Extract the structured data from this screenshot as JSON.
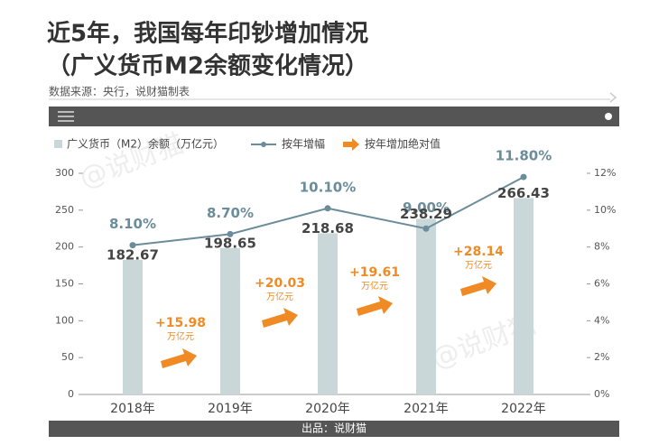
{
  "chart_data": {
    "type": "bar_line",
    "title": "近5年，我国每年印钞增加情况",
    "subtitle": "（广义货币M2余额变化情况）",
    "source": "数据来源：央行，说财猫制表",
    "footer": "出品：说财猫",
    "watermark": "@说财猫",
    "categories": [
      "2018年",
      "2019年",
      "2020年",
      "2021年",
      "2022年"
    ],
    "series": [
      {
        "name": "广义货币（M2）余额（万亿元）",
        "color": "#c9d7d9",
        "values": [
          182.67,
          198.65,
          218.68,
          238.29,
          266.43
        ]
      },
      {
        "name": "按年增幅",
        "color": "#6b8c9b",
        "axis": "y2",
        "values": [
          8.1,
          8.7,
          10.1,
          9.0,
          11.8
        ],
        "value_labels": [
          "8.10%",
          "8.70%",
          "10.10%",
          "9.00%",
          "11.80%"
        ]
      }
    ],
    "increments": {
      "name": "按年增加绝对值",
      "color": "#f08a24",
      "unit": "万亿元",
      "values": [
        15.98,
        20.03,
        19.61,
        28.14
      ],
      "value_labels": [
        "+15.98",
        "+20.03",
        "+19.61",
        "+28.14"
      ]
    },
    "ylim": [
      0,
      300
    ],
    "yticks": [
      0,
      50,
      100,
      150,
      200,
      250,
      300
    ],
    "y2lim": [
      0,
      12
    ],
    "y2ticks": [
      {
        "value": 0,
        "label": "0%"
      },
      {
        "value": 2,
        "label": "2%"
      },
      {
        "value": 4,
        "label": "4%"
      },
      {
        "value": 6,
        "label": "6%"
      },
      {
        "value": 8,
        "label": "8%"
      },
      {
        "value": 10,
        "label": "10%"
      },
      {
        "value": 12,
        "label": "12%"
      }
    ]
  }
}
